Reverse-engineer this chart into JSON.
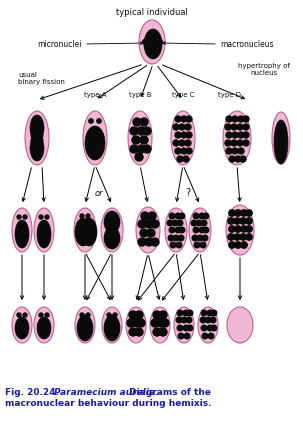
{
  "title": "typical individual",
  "caption_fig": "Fig. 20.24.",
  "caption_italic": "Paramecium aurelia.",
  "caption_rest": " Diagrams of the\nmacronuclear behaviour during hemixis.",
  "bg_color": "#ffffff",
  "cell_fill": "#f0b8d4",
  "cell_edge": "#c06090",
  "nucleus_fill": "#0a0a0a",
  "micronuclei_label": "micronuclei",
  "macronucleus_label": "macronucleus",
  "usual_label": "usual\nbinary fission",
  "hypertrophy_label": "hypertrophy of\nnucleus",
  "type_labels": [
    "type A",
    "type B",
    "type C",
    "type D"
  ],
  "or_label": "or",
  "question_label": "?",
  "caption_color": "#1a1aaa",
  "text_color": "#111111"
}
